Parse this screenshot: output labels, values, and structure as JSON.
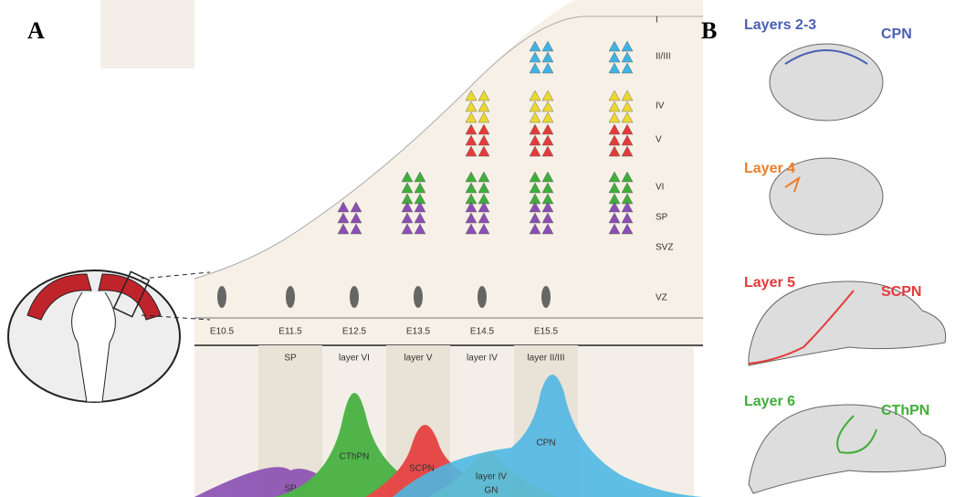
{
  "panel_a": {
    "label": "A",
    "cortical_layers": [
      "I",
      "II/III",
      "IV",
      "V",
      "VI",
      "SP",
      "SVZ",
      "VZ"
    ],
    "ages": [
      "E10.5",
      "E11.5",
      "E12.5",
      "E13.5",
      "E14.5",
      "E15.5"
    ],
    "birth_layers": [
      "SP",
      "layer VI",
      "layer V",
      "layer IV",
      "layer II/III"
    ],
    "populations": [
      "SP",
      "CThPN",
      "SCPN",
      "layer IV",
      "GN",
      "CPN"
    ]
  },
  "panel_b": {
    "label": "B",
    "rows": [
      {
        "layer": "Layers 2-3",
        "neuron": "CPN"
      },
      {
        "layer": "Layer 4",
        "neuron": ""
      },
      {
        "layer": "Layer 5",
        "neuron": "SCPN"
      },
      {
        "layer": "Layer 6",
        "neuron": "CThPN"
      }
    ]
  }
}
